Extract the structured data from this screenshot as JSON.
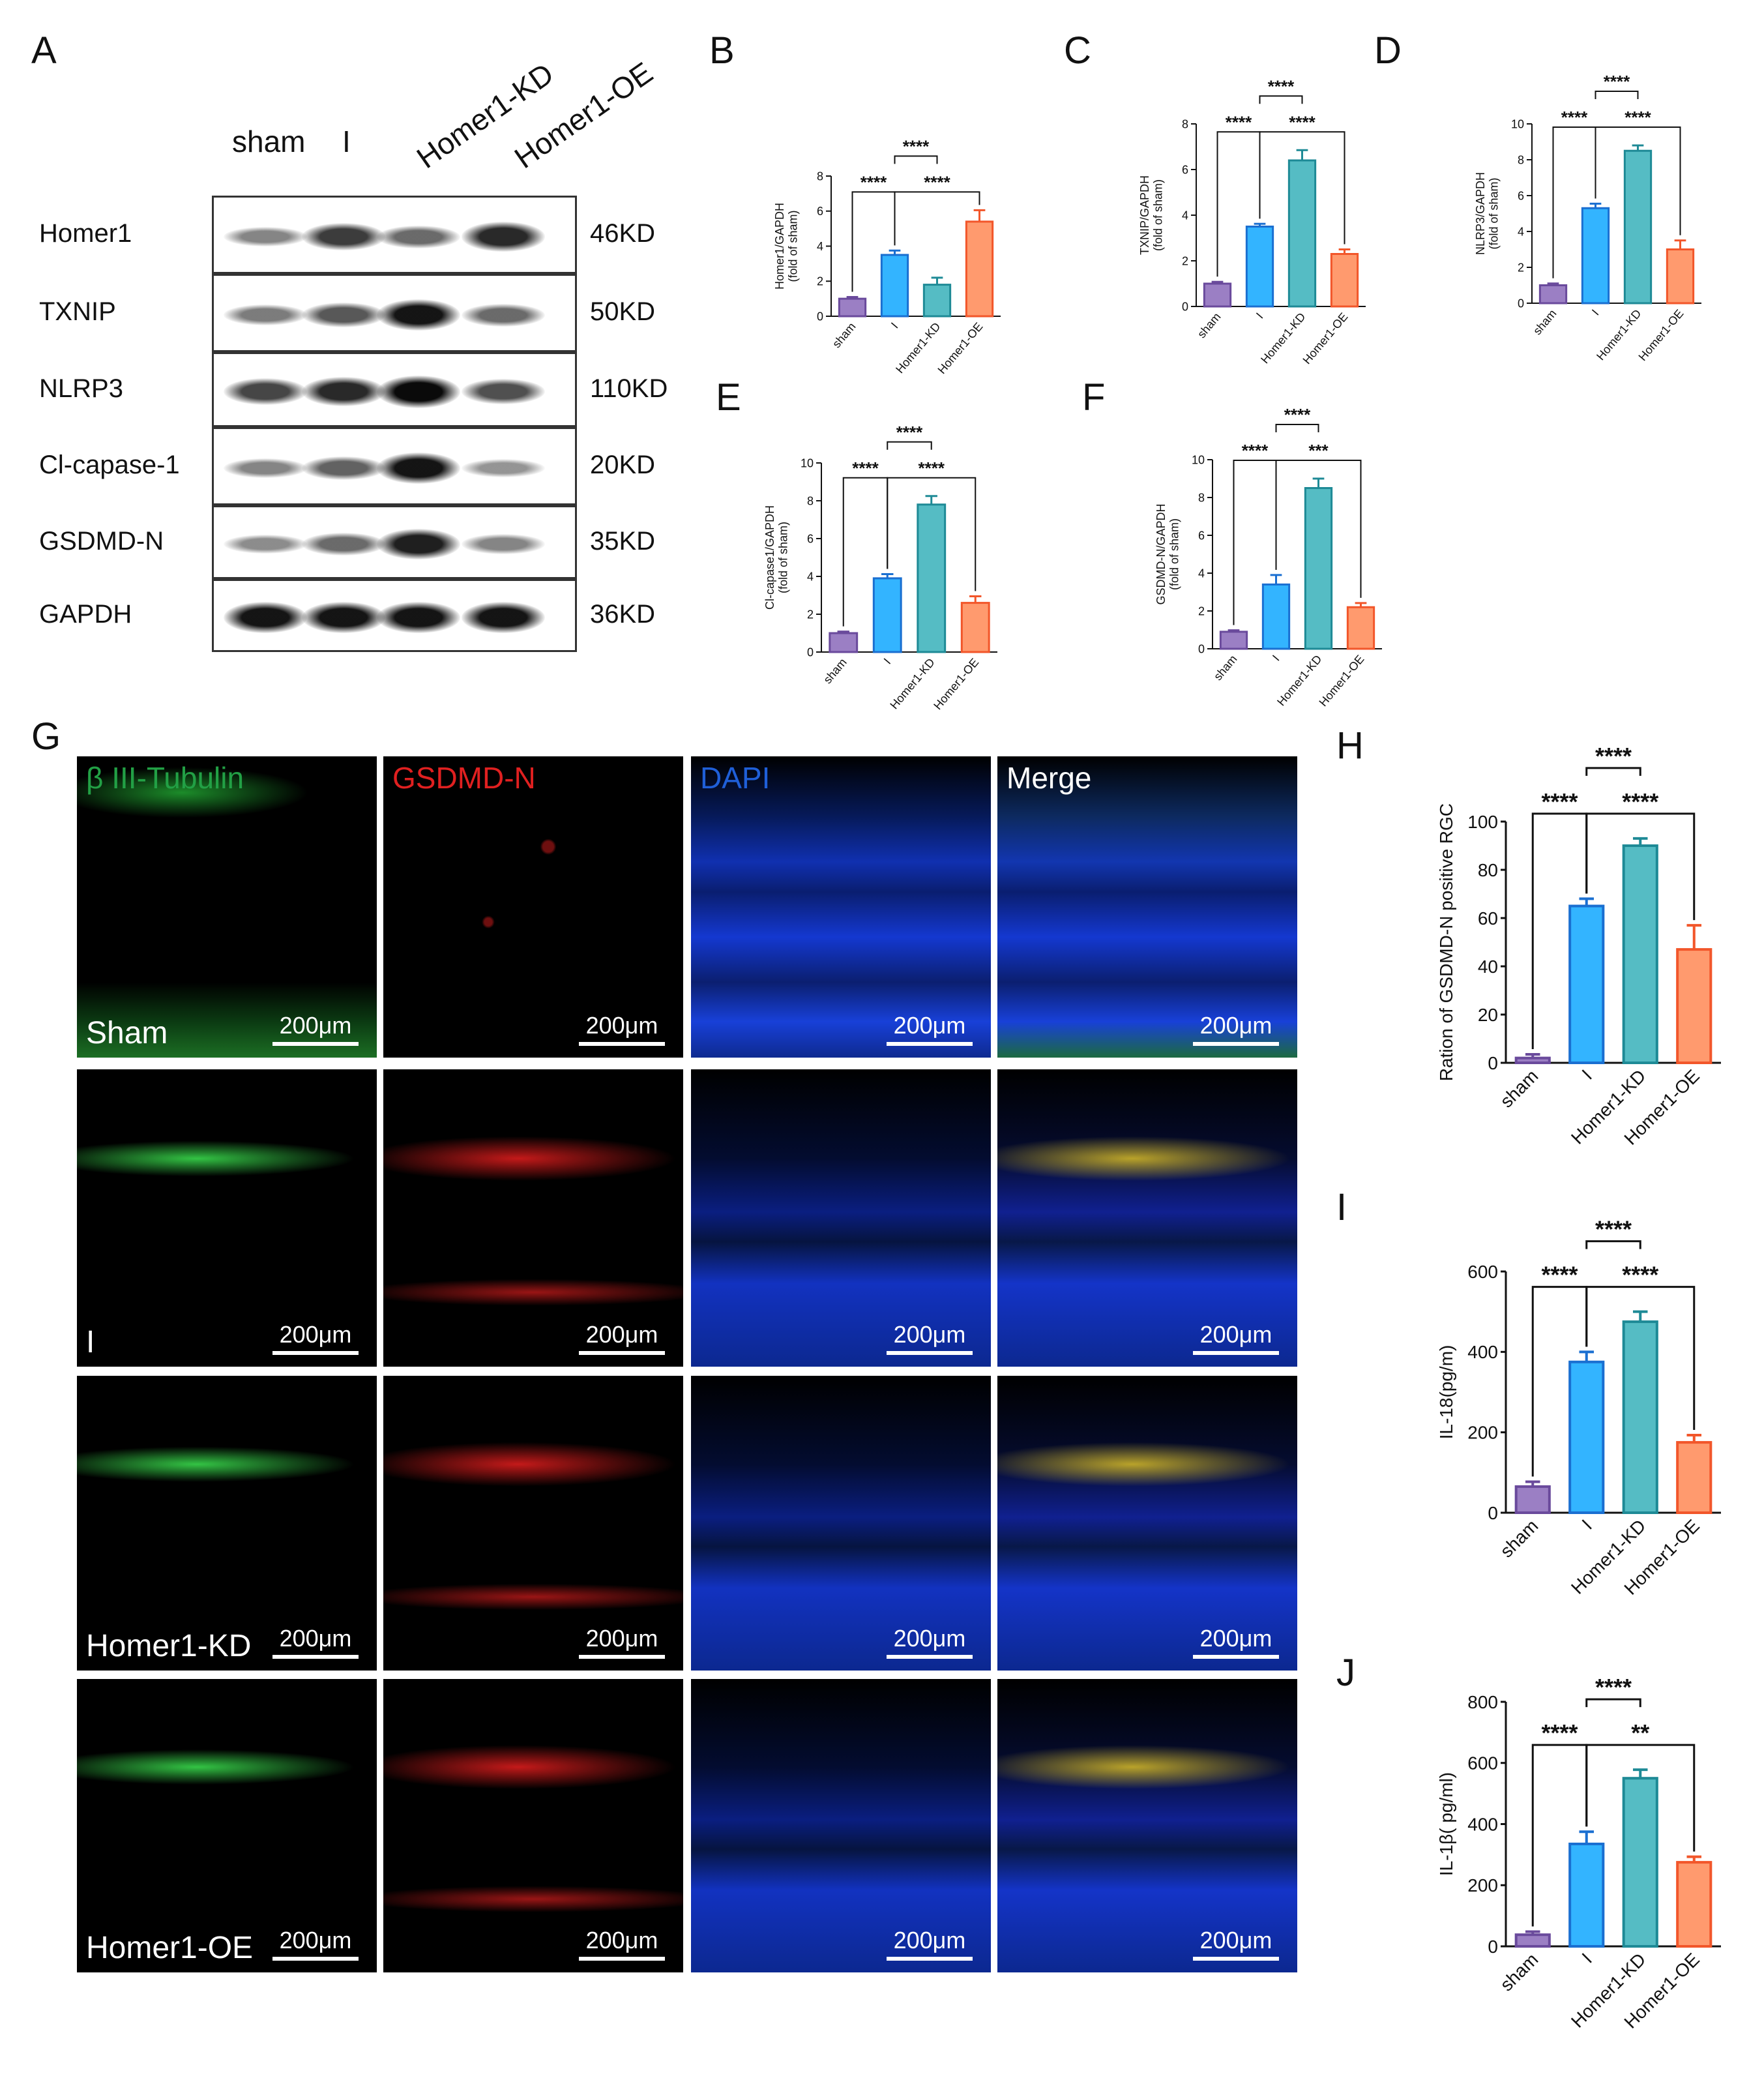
{
  "panels": {
    "A": "A",
    "B": "B",
    "C": "C",
    "D": "D",
    "E": "E",
    "F": "F",
    "G": "G",
    "H": "H",
    "I": "I",
    "J": "J"
  },
  "western_blot": {
    "lanes": [
      "sham",
      "I",
      "Homer1-KD",
      "Homer1-OE"
    ],
    "rows": [
      {
        "label": "Homer1",
        "kd": "46KD"
      },
      {
        "label": "TXNIP",
        "kd": "50KD"
      },
      {
        "label": "NLRP3",
        "kd": "110KD"
      },
      {
        "label": "Cl-capase-1",
        "kd": "20KD"
      },
      {
        "label": "GSDMD-N",
        "kd": "35KD"
      },
      {
        "label": "GAPDH",
        "kd": "36KD"
      }
    ],
    "band_intensity": [
      [
        0.35,
        0.75,
        0.5,
        0.85
      ],
      [
        0.4,
        0.6,
        0.95,
        0.5
      ],
      [
        0.7,
        0.85,
        1.0,
        0.65
      ],
      [
        0.35,
        0.55,
        0.95,
        0.25
      ],
      [
        0.3,
        0.5,
        0.9,
        0.35
      ],
      [
        0.95,
        0.95,
        0.95,
        0.95
      ]
    ]
  },
  "microscopy": {
    "channels": [
      {
        "label": "β III-Tubulin",
        "color": "#22a045"
      },
      {
        "label": "GSDMD-N",
        "color": "#e02020"
      },
      {
        "label": "DAPI",
        "color": "#1f5fd8"
      },
      {
        "label": "Merge",
        "color": "#ffffff"
      }
    ],
    "groups": [
      "Sham",
      "I",
      "Homer1-KD",
      "Homer1-OE"
    ],
    "scale_bar": "200μm"
  },
  "chart_data": [
    {
      "id": "B",
      "type": "bar",
      "categories": [
        "sham",
        "I",
        "Homer1-KD",
        "Homer1-OE"
      ],
      "values": [
        1.0,
        3.5,
        1.8,
        5.4
      ],
      "errors": [
        0.1,
        0.25,
        0.4,
        0.65
      ],
      "ylabel": "Homer1/GAPDH\n(fold of sham)",
      "ylim": [
        0,
        8
      ],
      "yticks": [
        0,
        2,
        4,
        6,
        8
      ],
      "sig": [
        {
          "from": 0,
          "to": 1,
          "label": "****",
          "level": 0
        },
        {
          "from": 1,
          "to": 3,
          "label": "****",
          "level": 0
        },
        {
          "from": 1,
          "to": 2,
          "label": "****",
          "level": 1
        }
      ]
    },
    {
      "id": "C",
      "type": "bar",
      "categories": [
        "sham",
        "I",
        "Homer1-KD",
        "Homer1-OE"
      ],
      "values": [
        1.0,
        3.5,
        6.4,
        2.3
      ],
      "errors": [
        0.08,
        0.12,
        0.45,
        0.2
      ],
      "ylabel": "TXNIP/GAPDH\n(fold of sham)",
      "ylim": [
        0,
        8
      ],
      "yticks": [
        0,
        2,
        4,
        6,
        8
      ],
      "sig": [
        {
          "from": 0,
          "to": 1,
          "label": "****",
          "level": 0
        },
        {
          "from": 1,
          "to": 3,
          "label": "****",
          "level": 0
        },
        {
          "from": 1,
          "to": 2,
          "label": "****",
          "level": 1
        }
      ]
    },
    {
      "id": "D",
      "type": "bar",
      "categories": [
        "sham",
        "I",
        "Homer1-KD",
        "Homer1-OE"
      ],
      "values": [
        1.0,
        5.3,
        8.5,
        3.0
      ],
      "errors": [
        0.1,
        0.25,
        0.3,
        0.5
      ],
      "ylabel": "NLRP3/GAPDH\n(fold of sham)",
      "ylim": [
        0,
        10
      ],
      "yticks": [
        0,
        2,
        4,
        6,
        8,
        10
      ],
      "sig": [
        {
          "from": 0,
          "to": 1,
          "label": "****",
          "level": 0
        },
        {
          "from": 1,
          "to": 3,
          "label": "****",
          "level": 0
        },
        {
          "from": 1,
          "to": 2,
          "label": "****",
          "level": 1
        }
      ]
    },
    {
      "id": "E",
      "type": "bar",
      "categories": [
        "sham",
        "I",
        "Homer1-KD",
        "Homer1-OE"
      ],
      "values": [
        1.0,
        3.9,
        7.8,
        2.6
      ],
      "errors": [
        0.08,
        0.22,
        0.45,
        0.35
      ],
      "ylabel": "Cl-capase1/GAPDH\n(fold of sham)",
      "ylim": [
        0,
        10
      ],
      "yticks": [
        0,
        2,
        4,
        6,
        8,
        10
      ],
      "sig": [
        {
          "from": 0,
          "to": 1,
          "label": "****",
          "level": 0
        },
        {
          "from": 1,
          "to": 3,
          "label": "****",
          "level": 0
        },
        {
          "from": 1,
          "to": 2,
          "label": "****",
          "level": 1
        }
      ]
    },
    {
      "id": "F",
      "type": "bar",
      "categories": [
        "sham",
        "I",
        "Homer1-KD",
        "Homer1-OE"
      ],
      "values": [
        0.9,
        3.4,
        8.5,
        2.2
      ],
      "errors": [
        0.08,
        0.5,
        0.5,
        0.22
      ],
      "ylabel": "GSDMD-N/GAPDH\n(fold of sham)",
      "ylim": [
        0,
        10
      ],
      "yticks": [
        0,
        2,
        4,
        6,
        8,
        10
      ],
      "sig": [
        {
          "from": 0,
          "to": 1,
          "label": "****",
          "level": 0
        },
        {
          "from": 1,
          "to": 3,
          "label": "***",
          "level": 0
        },
        {
          "from": 1,
          "to": 2,
          "label": "****",
          "level": 1
        }
      ]
    },
    {
      "id": "H",
      "type": "bar",
      "categories": [
        "sham",
        "I",
        "Homer1-KD",
        "Homer1-OE"
      ],
      "values": [
        2,
        65,
        90,
        47
      ],
      "errors": [
        1.5,
        3,
        3,
        10
      ],
      "ylabel": "Ration of GSDMD-N positive RGC",
      "ylim": [
        0,
        100
      ],
      "yticks": [
        0,
        20,
        40,
        60,
        80,
        100
      ],
      "sig": [
        {
          "from": 0,
          "to": 1,
          "label": "****",
          "level": 0
        },
        {
          "from": 1,
          "to": 3,
          "label": "****",
          "level": 0
        },
        {
          "from": 1,
          "to": 2,
          "label": "****",
          "level": 1
        }
      ]
    },
    {
      "id": "I",
      "type": "bar",
      "categories": [
        "sham",
        "I",
        "Homer1-KD",
        "Homer1-OE"
      ],
      "values": [
        65,
        375,
        475,
        175
      ],
      "errors": [
        12,
        25,
        25,
        18
      ],
      "ylabel": "IL-18(pg/m)",
      "ylim": [
        0,
        600
      ],
      "yticks": [
        0,
        200,
        400,
        600
      ],
      "sig": [
        {
          "from": 0,
          "to": 1,
          "label": "****",
          "level": 0
        },
        {
          "from": 1,
          "to": 3,
          "label": "****",
          "level": 0
        },
        {
          "from": 1,
          "to": 2,
          "label": "****",
          "level": 1
        }
      ]
    },
    {
      "id": "J",
      "type": "bar",
      "categories": [
        "sham",
        "I",
        "Homer1-KD",
        "Homer1-OE"
      ],
      "values": [
        38,
        335,
        550,
        275
      ],
      "errors": [
        10,
        40,
        28,
        18
      ],
      "ylabel": "IL-1β( pg/ml)",
      "ylim": [
        0,
        800
      ],
      "yticks": [
        0,
        200,
        400,
        600,
        800
      ],
      "sig": [
        {
          "from": 0,
          "to": 1,
          "label": "****",
          "level": 0
        },
        {
          "from": 1,
          "to": 3,
          "label": "**",
          "level": 0
        },
        {
          "from": 1,
          "to": 2,
          "label": "****",
          "level": 1
        }
      ]
    }
  ],
  "bar_colors": [
    {
      "fill": "#9b7fc4",
      "stroke": "#6a4a9c"
    },
    {
      "fill": "#33b4ff",
      "stroke": "#1a6fd1"
    },
    {
      "fill": "#55bcc4",
      "stroke": "#1e8a96"
    },
    {
      "fill": "#ff9a6e",
      "stroke": "#f2562a"
    }
  ]
}
